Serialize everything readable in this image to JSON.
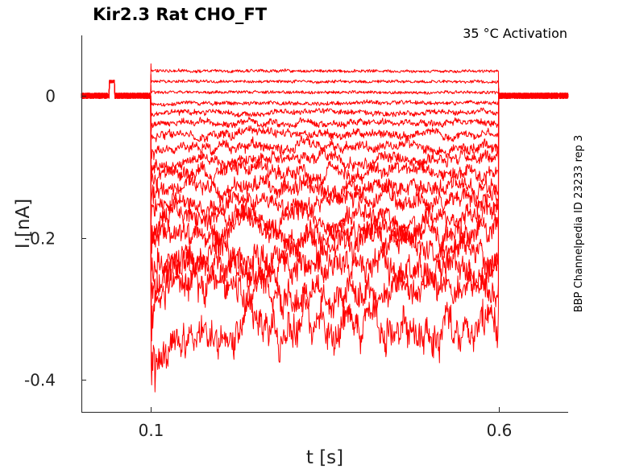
{
  "chart_data": {
    "type": "line",
    "title": "Kir2.3  Rat  CHO_FT",
    "annotation": "35 °C  Activation",
    "side_label": "BBP Channelpedia ID 23233 rep 3",
    "xlabel": "t [s]",
    "ylabel": "I [nA]",
    "xlim": [
      -0.0,
      0.7
    ],
    "ylim": [
      -0.445,
      0.085
    ],
    "xticks": [
      0.1,
      0.6
    ],
    "xtick_labels": [
      "0.1",
      "0.6"
    ],
    "yticks": [
      0,
      -0.2,
      -0.4
    ],
    "ytick_labels": [
      "0",
      "-0.2",
      "-0.4"
    ],
    "grid": false,
    "line_color": "#ff0000",
    "pulse_window": [
      0.1,
      0.6
    ],
    "baseline_noise_nA": 0.004,
    "prepulse_artifact": {
      "t_start": 0.04,
      "t_end": 0.048,
      "value_nA": 0.02
    },
    "series_steady_state_nA": [
      0.035,
      0.02,
      0.005,
      -0.01,
      -0.024,
      -0.038,
      -0.055,
      -0.072,
      -0.09,
      -0.108,
      -0.128,
      -0.148,
      -0.17,
      -0.19,
      -0.22,
      -0.245,
      -0.28,
      -0.33
    ]
  }
}
